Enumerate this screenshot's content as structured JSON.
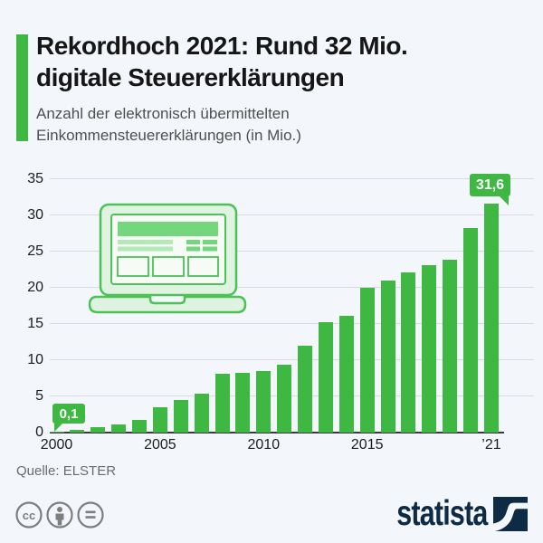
{
  "header": {
    "title_line1": "Rekordhoch 2021: Rund 32 Mio.",
    "title_line2": "digitale Steuererklärungen",
    "subtitle_line1": "Anzahl der elektronisch übermittelten",
    "subtitle_line2": "Einkommensteuererklärungen (in Mio.)"
  },
  "chart_data": {
    "type": "bar",
    "title": "Rekordhoch 2021: Rund 32 Mio. digitale Steuererklärungen",
    "subtitle": "Anzahl der elektronisch übermittelten Einkommensteuererklärungen (in Mio.)",
    "xlabel": "",
    "ylabel": "",
    "categories": [
      2000,
      2001,
      2002,
      2003,
      2004,
      2005,
      2006,
      2007,
      2008,
      2009,
      2010,
      2011,
      2012,
      2013,
      2014,
      2015,
      2016,
      2017,
      2018,
      2019,
      2020,
      2021
    ],
    "values": [
      0.1,
      0.4,
      0.7,
      1.1,
      1.8,
      3.5,
      4.5,
      5.4,
      8.1,
      8.2,
      8.5,
      9.4,
      12.0,
      15.2,
      16.1,
      20.0,
      21.0,
      22.1,
      23.1,
      23.9,
      28.2,
      31.6
    ],
    "ylim": [
      0,
      35
    ],
    "yticks": [
      0,
      5,
      10,
      15,
      20,
      25,
      30,
      35
    ],
    "xticks": [
      {
        "label": "2000",
        "year": 2000
      },
      {
        "label": "2005",
        "year": 2005
      },
      {
        "label": "2010",
        "year": 2010
      },
      {
        "label": "2015",
        "year": 2015
      },
      {
        "label": "’21",
        "year": 2021
      }
    ],
    "grid": true,
    "legend_position": "none",
    "bar_color": "#3eb843",
    "annotations": [
      {
        "text": "0,1",
        "year": 2000,
        "value": 0.1
      },
      {
        "text": "31,6",
        "year": 2021,
        "value": 31.6
      }
    ]
  },
  "illustration": {
    "name": "laptop-with-online-tax-form"
  },
  "footer": {
    "source": "Quelle: ELSTER",
    "brand": "statista",
    "license_icons": [
      "cc-icon",
      "attribution-icon",
      "equality-icon"
    ]
  },
  "colors": {
    "green": "#3eb843",
    "laptop_fill": "#dff3e0",
    "laptop_stroke": "#4cc156",
    "laptop_mid": "#74d77e",
    "laptop_light": "#b2e9b6",
    "navy": "#0e2b45",
    "grid": "#d6dbe2",
    "axis": "#3a3a3a",
    "background": "#f3f6fa",
    "icon_gray": "#7e7e7e"
  }
}
